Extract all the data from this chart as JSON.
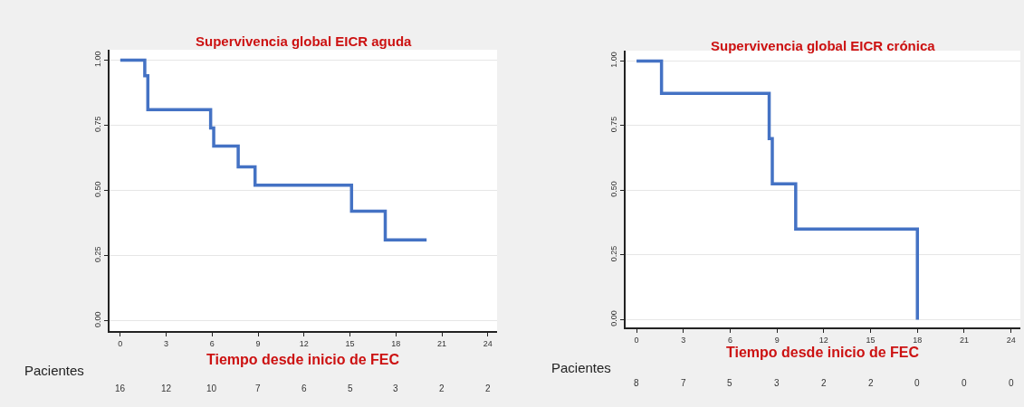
{
  "chart_data": [
    {
      "type": "step",
      "title": "Supervivencia global EICR aguda",
      "xlabel": "Tiempo desde inicio de FEC",
      "series": [
        {
          "color": "#4472c4",
          "x": [
            0,
            1.6,
            1.8,
            5.9,
            6.1,
            7.7,
            8.8,
            15.1,
            17.3,
            20
          ],
          "values": [
            1,
            0.94,
            0.81,
            0.74,
            0.67,
            0.59,
            0.52,
            0.42,
            0.31,
            0.31
          ]
        }
      ],
      "xlim": [
        -0.7,
        24.6
      ],
      "xticks": [
        0,
        3,
        6,
        9,
        12,
        15,
        18,
        21,
        24
      ],
      "ylim": [
        -0.04,
        1.04
      ],
      "yticks": [
        {
          "value": 0,
          "label": "0.00"
        },
        {
          "value": 0.25,
          "label": "0.25"
        },
        {
          "value": 0.5,
          "label": "0.50"
        },
        {
          "value": 0.75,
          "label": "0.75"
        },
        {
          "value": 1,
          "label": "1.00"
        }
      ],
      "grid": "y",
      "line_style": "solid",
      "marker": "none",
      "annotations": [
        "Pacientes",
        "16",
        "12",
        "10",
        "7",
        "6",
        "5",
        "3",
        "2",
        "2"
      ]
    },
    {
      "type": "step",
      "title": "Supervivencia global EICR crónica",
      "xlabel": "Tiempo desde inicio de FEC",
      "series": [
        {
          "color": "#4472c4",
          "x": [
            0,
            1.6,
            8.5,
            8.7,
            10.2,
            18
          ],
          "values": [
            1,
            0.875,
            0.7,
            0.525,
            0.35,
            0
          ]
        }
      ],
      "xlim": [
        -0.7,
        24.6
      ],
      "xticks": [
        0,
        3,
        6,
        9,
        12,
        15,
        18,
        21,
        24
      ],
      "ylim": [
        -0.03,
        1.04
      ],
      "yticks": [
        {
          "value": 0,
          "label": "0.00"
        },
        {
          "value": 0.25,
          "label": "0.25"
        },
        {
          "value": 0.5,
          "label": "0.50"
        },
        {
          "value": 0.75,
          "label": "0.75"
        },
        {
          "value": 1,
          "label": "1.00"
        }
      ],
      "grid": "y",
      "line_style": "solid",
      "marker": "none",
      "annotations": [
        "Pacientes",
        "8",
        "7",
        "5",
        "3",
        "2",
        "2",
        "0",
        "0",
        "0"
      ]
    }
  ]
}
